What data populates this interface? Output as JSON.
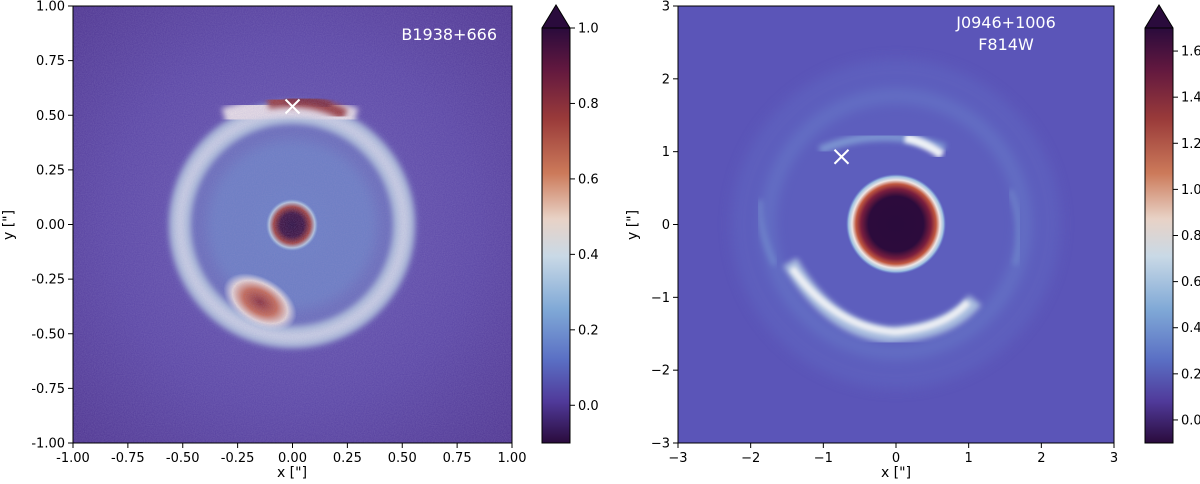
{
  "panels": [
    {
      "name": "B1938+666",
      "labels": [
        "B1938+666"
      ],
      "xlabel": "x [\"]",
      "ylabel": "y [\"]",
      "xlim": [
        -1.0,
        1.0
      ],
      "ylim": [
        -1.0,
        1.0
      ],
      "xticks": [
        "-1.00",
        "-0.75",
        "-0.50",
        "-0.25",
        "0.00",
        "0.25",
        "0.50",
        "0.75",
        "1.00"
      ],
      "yticks": [
        "1.00",
        "0.75",
        "0.50",
        "0.25",
        "0.00",
        "-0.25",
        "-0.50",
        "-0.75",
        "-1.00"
      ],
      "marker": {
        "x": 0.0,
        "y": 0.54
      },
      "colorbar": {
        "min": -0.1,
        "max": 1.0,
        "ticks": [
          "1.0",
          "0.8",
          "0.6",
          "0.4",
          "0.2",
          "0.0"
        ]
      }
    },
    {
      "name": "J0946+1006",
      "labels": [
        "J0946+1006",
        "F814W"
      ],
      "xlabel": "x [\"]",
      "ylabel": "y [\"]",
      "xlim": [
        -3,
        3
      ],
      "ylim": [
        -3,
        3
      ],
      "xticks": [
        "−3",
        "−2",
        "−1",
        "0",
        "1",
        "2",
        "3"
      ],
      "yticks": [
        "3",
        "2",
        "1",
        "0",
        "−1",
        "−2",
        "−3"
      ],
      "marker": {
        "x": -0.75,
        "y": 0.93
      },
      "colorbar": {
        "min": -0.1,
        "max": 1.7,
        "ticks": [
          "1.6",
          "1.4",
          "1.2",
          "1.0",
          "0.8",
          "0.6",
          "0.4",
          "0.2",
          "0.0"
        ]
      }
    }
  ],
  "colors": {
    "background_left": "#5a3f9e",
    "background_right": "#5b55b8",
    "ring_light": "#e9e3ee",
    "ring_mid": "#8fb2d8",
    "peak_dark": "#2a0b3c",
    "peak_red": "#a2403a",
    "marker": "#ffffff"
  }
}
